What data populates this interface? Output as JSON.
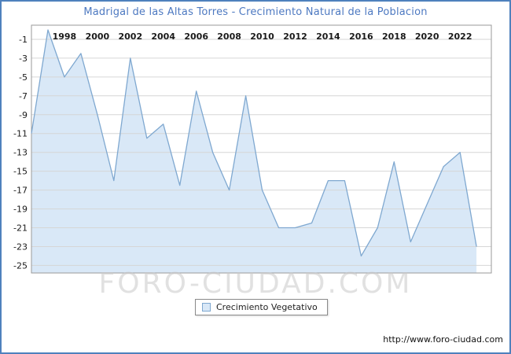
{
  "watermark": "FORO-CIUDAD.COM",
  "footer_url": "http://www.foro-ciudad.com",
  "legend": {
    "label": "Crecimiento Vegetativo"
  },
  "chart_data": {
    "type": "area",
    "title": "Madrigal de las Altas Torres - Crecimiento Natural de la Poblacion",
    "xlabel": "",
    "ylabel": "",
    "x": [
      1996,
      1997,
      1998,
      1999,
      2000,
      2001,
      2002,
      2003,
      2004,
      2005,
      2006,
      2007,
      2008,
      2009,
      2010,
      2011,
      2012,
      2013,
      2014,
      2015,
      2016,
      2017,
      2018,
      2019,
      2020,
      2021,
      2022,
      2023
    ],
    "values": [
      -11,
      0,
      -5,
      -2.5,
      -9,
      -16,
      -3,
      -11.5,
      -10,
      -16.5,
      -6.5,
      -13,
      -17,
      -7,
      -17,
      -21,
      -21,
      -20.5,
      -16,
      -16,
      -24,
      -21,
      -14,
      -22.5,
      -18.5,
      -14.5,
      -13,
      -23
    ],
    "series_name": "Crecimiento Vegetativo",
    "xticks": [
      1998,
      2000,
      2002,
      2004,
      2006,
      2008,
      2010,
      2012,
      2014,
      2016,
      2018,
      2020,
      2022
    ],
    "yticks": [
      -1,
      -3,
      -5,
      -7,
      -9,
      -11,
      -13,
      -15,
      -17,
      -19,
      -21,
      -23,
      -25
    ],
    "ylim": [
      -25.8,
      0.5
    ],
    "grid": "horizontal",
    "legend_position": "bottom-center",
    "colors": {
      "line": "#7fa8d0",
      "fill": "#d9e8f7",
      "grid": "#d6d6d6",
      "axis_border": "#9a9a9a",
      "tick_text": "#1a1a1a",
      "title_text": "#4d79c1",
      "frame_border": "#4f81bd",
      "watermark": "#c9c9c9"
    }
  }
}
